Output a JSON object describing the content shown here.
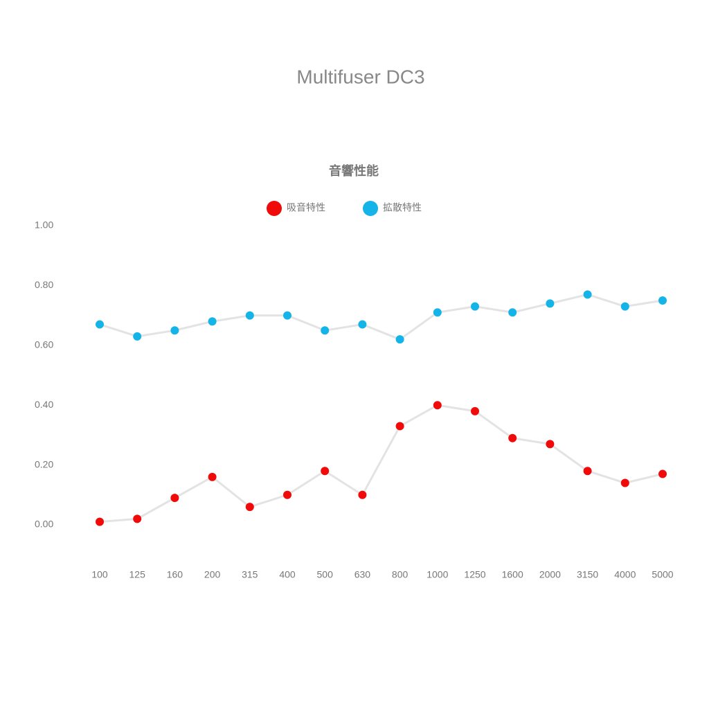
{
  "chart_data": {
    "type": "line",
    "title": "Multifuser DC3",
    "subtitle": "音響性能",
    "categories": [
      "100",
      "125",
      "160",
      "200",
      "315",
      "400",
      "500",
      "630",
      "800",
      "1000",
      "1250",
      "1600",
      "2000",
      "3150",
      "4000",
      "5000"
    ],
    "series": [
      {
        "name": "吸音特性",
        "color": "#f00a0a",
        "values": [
          0.01,
          0.02,
          0.09,
          0.16,
          0.06,
          0.1,
          0.18,
          0.1,
          0.33,
          0.4,
          0.38,
          0.29,
          0.27,
          0.18,
          0.14,
          0.17
        ]
      },
      {
        "name": "拡散特性",
        "color": "#14b4e8",
        "values": [
          0.67,
          0.63,
          0.65,
          0.68,
          0.7,
          0.7,
          0.65,
          0.67,
          0.62,
          0.71,
          0.73,
          0.71,
          0.74,
          0.77,
          0.73,
          0.75
        ]
      }
    ],
    "line_color": "#e3e3e3",
    "ylim": [
      0,
      1
    ],
    "yticks": [
      {
        "value": 0,
        "label": "0.00"
      },
      {
        "value": 0.2,
        "label": "0.20"
      },
      {
        "value": 0.4,
        "label": "0.40"
      },
      {
        "value": 0.6,
        "label": "0.60"
      },
      {
        "value": 0.8,
        "label": "0.80"
      },
      {
        "value": 1,
        "label": "1.00"
      }
    ],
    "grid": false
  }
}
